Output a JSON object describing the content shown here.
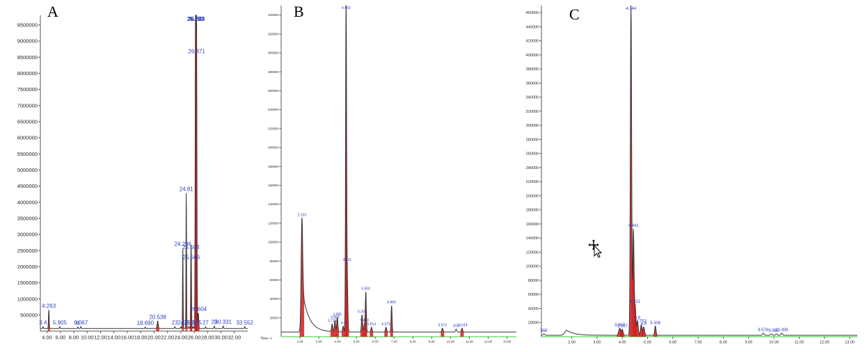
{
  "colors": {
    "trace": "#333333",
    "fill": "#cc1f1f",
    "label": "#2b3fbf",
    "axis": "#555555",
    "baseline": "#2cd12c"
  },
  "chart_data": [
    {
      "type": "line",
      "panel_label": "A",
      "xlim": [
        3.0,
        34.0
      ],
      "ylim": [
        0,
        9800000
      ],
      "x_ticks": [
        "4.00",
        "6.00",
        "8.00",
        "10.00",
        "12.00",
        "14.00",
        "16.00",
        "18.00",
        "20.00",
        "22.00",
        "24.00",
        "26.00",
        "28.00",
        "30.00",
        "32.00"
      ],
      "x_tick_values": [
        4,
        6,
        8,
        10,
        12,
        14,
        16,
        18,
        20,
        22,
        24,
        26,
        28,
        30,
        32
      ],
      "y_ticks": [
        "500000",
        "1000000",
        "1500000",
        "2000000",
        "2500000",
        "3000000",
        "3500000",
        "4000000",
        "4500000",
        "5000000",
        "5500000",
        "6000000",
        "6500000",
        "7000000",
        "7500000",
        "8000000",
        "8500000",
        "9000000",
        "9500000"
      ],
      "y_tick_values": [
        500000,
        1000000,
        1500000,
        2000000,
        2500000,
        3000000,
        3500000,
        4000000,
        4500000,
        5000000,
        5500000,
        6000000,
        6500000,
        7000000,
        7500000,
        8000000,
        8500000,
        9000000,
        9500000
      ],
      "baseline": 80000,
      "peaks": [
        {
          "rt": 3.4,
          "h": 60000,
          "w": 0.05,
          "label": "3.4"
        },
        {
          "rt": 4.263,
          "h": 580000,
          "w": 0.05,
          "label": "4.263"
        },
        {
          "rt": 5.905,
          "h": 60000,
          "w": 0.05,
          "label": "5.905"
        },
        {
          "rt": 8.6,
          "h": 50000,
          "w": 0.05,
          "label": "8"
        },
        {
          "rt": 9.067,
          "h": 60000,
          "w": 0.05,
          "label": "9.067"
        },
        {
          "rt": 18.69,
          "h": 50000,
          "w": 0.05,
          "label": "18.690"
        },
        {
          "rt": 20.538,
          "h": 230000,
          "w": 0.08,
          "label": "20.538"
        },
        {
          "rt": 23.1,
          "h": 60000,
          "w": 0.05,
          "label": "23"
        },
        {
          "rt": 24.0,
          "h": 60000,
          "w": 0.05,
          "label": "24"
        },
        {
          "rt": 24.296,
          "h": 2500000,
          "w": 0.04,
          "label": "24.296"
        },
        {
          "rt": 24.81,
          "h": 4200000,
          "w": 0.04,
          "label": "24.81"
        },
        {
          "rt": 25.2,
          "h": 60000,
          "w": 0.05,
          "label": "25.2"
        },
        {
          "rt": 25.504,
          "h": 1950000,
          "w": 0.04,
          "label": "25.504"
        },
        {
          "rt": 25.566,
          "h": 1500000,
          "w": 0.04,
          "label": "25.566"
        },
        {
          "rt": 25.845,
          "h": 60000,
          "w": 0.05,
          "label": "25.845"
        },
        {
          "rt": 26.192,
          "h": 9450000,
          "w": 0.05,
          "label": "26.192"
        },
        {
          "rt": 26.281,
          "h": 7500000,
          "w": 0.05,
          "label": "26.281"
        },
        {
          "rt": 26.339,
          "h": 4150000,
          "w": 0.05,
          "label": "26.339"
        },
        {
          "rt": 26.371,
          "h": 3600000,
          "w": 0.05,
          "label": "26.371"
        },
        {
          "rt": 26.604,
          "h": 480000,
          "w": 0.06,
          "label": "26.604"
        },
        {
          "rt": 27.7,
          "h": 60000,
          "w": 0.05,
          "label": "27"
        },
        {
          "rt": 29.0,
          "h": 80000,
          "w": 0.05,
          "label": "29"
        },
        {
          "rt": 30.331,
          "h": 80000,
          "w": 0.05,
          "label": "30.331"
        },
        {
          "rt": 33.552,
          "h": 60000,
          "w": 0.05,
          "label": "33.552"
        }
      ]
    },
    {
      "type": "line",
      "panel_label": "B",
      "xlim": [
        1.0,
        13.5
      ],
      "ylim": [
        0,
        350000
      ],
      "x_ticks": [
        "2.00",
        "3.00",
        "4.00",
        "5.00",
        "6.00",
        "7.00",
        "8.00",
        "9.00",
        "10.00",
        "11.00",
        "12.00",
        "13.00"
      ],
      "x_tick_values": [
        2,
        3,
        4,
        5,
        6,
        7,
        8,
        9,
        10,
        11,
        12,
        13
      ],
      "y_ticks": [
        "20000",
        "40000",
        "60000",
        "80000",
        "100000",
        "120000",
        "140000",
        "160000",
        "180000",
        "200000",
        "220000",
        "240000",
        "260000",
        "280000",
        "300000",
        "320000",
        "340000"
      ],
      "y_tick_values": [
        20000,
        40000,
        60000,
        80000,
        100000,
        120000,
        140000,
        160000,
        180000,
        200000,
        220000,
        240000,
        260000,
        280000,
        300000,
        320000,
        340000
      ],
      "x_axis_text": "Time-->",
      "baseline": 5000,
      "hump": {
        "center": 2.2,
        "height": 35000,
        "width": 0.35
      },
      "peaks": [
        {
          "rt": 2.103,
          "h": 105000,
          "w": 0.04,
          "label": "2.103"
        },
        {
          "rt": 3.71,
          "h": 8000,
          "w": 0.03,
          "label": "3.710"
        },
        {
          "rt": 3.86,
          "h": 12000,
          "w": 0.03,
          "label": "3.860"
        },
        {
          "rt": 3.985,
          "h": 15000,
          "w": 0.03,
          "label": "3.985"
        },
        {
          "rt": 4.3,
          "h": 6000,
          "w": 0.03,
          "label": "4.3"
        },
        {
          "rt": 4.45,
          "h": 350000,
          "w": 0.025,
          "label": "4.450"
        },
        {
          "rt": 4.511,
          "h": 55000,
          "w": 0.03,
          "label": "4.511"
        },
        {
          "rt": 5.3,
          "h": 18000,
          "w": 0.03,
          "label": "5.301"
        },
        {
          "rt": 5.5,
          "h": 42000,
          "w": 0.025,
          "label": "5.500"
        },
        {
          "rt": 5.43,
          "h": 8000,
          "w": 0.03,
          "label": "5.430"
        },
        {
          "rt": 5.8,
          "h": 5000,
          "w": 0.03,
          "label": "5.814"
        },
        {
          "rt": 6.575,
          "h": 5000,
          "w": 0.03,
          "label": "6.575"
        },
        {
          "rt": 6.869,
          "h": 28000,
          "w": 0.025,
          "label": "6.869"
        },
        {
          "rt": 9.572,
          "h": 4000,
          "w": 0.03,
          "label": "9.572"
        },
        {
          "rt": 10.3,
          "h": 3000,
          "w": 0.03,
          "label": "10.3"
        },
        {
          "rt": 10.614,
          "h": 4000,
          "w": 0.03,
          "label": "10.614"
        }
      ]
    },
    {
      "type": "line",
      "panel_label": "C",
      "xlim": [
        0.8,
        13.3
      ],
      "ylim": [
        0,
        470000
      ],
      "x_ticks": [
        "2.00",
        "3.00",
        "4.00",
        "5.00",
        "6.00",
        "7.00",
        "8.00",
        "9.00",
        "10.00",
        "11.00",
        "12.00",
        "13.00"
      ],
      "x_tick_values": [
        2,
        3,
        4,
        5,
        6,
        7,
        8,
        9,
        10,
        11,
        12,
        13
      ],
      "y_ticks": [
        "20000",
        "40000",
        "60000",
        "80000",
        "100000",
        "120000",
        "140000",
        "160000",
        "180000",
        "200000",
        "220000",
        "240000",
        "260000",
        "280000",
        "300000",
        "320000",
        "340000",
        "360000",
        "380000",
        "400000",
        "420000",
        "440000",
        "460000"
      ],
      "y_tick_values": [
        20000,
        40000,
        60000,
        80000,
        100000,
        120000,
        140000,
        160000,
        180000,
        200000,
        220000,
        240000,
        260000,
        280000,
        300000,
        320000,
        340000,
        360000,
        380000,
        400000,
        420000,
        440000,
        460000
      ],
      "baseline": 2000,
      "hump": {
        "center": 1.8,
        "height": 7000,
        "width": 0.3
      },
      "peaks": [
        {
          "rt": 0.9,
          "h": 2000,
          "w": 0.03,
          "label": "566"
        },
        {
          "rt": 3.9,
          "h": 10000,
          "w": 0.04,
          "label": "3.907"
        },
        {
          "rt": 4.0,
          "h": 8000,
          "w": 0.03,
          "label": "3.997"
        },
        {
          "rt": 4.344,
          "h": 470000,
          "w": 0.025,
          "label": "4.344"
        },
        {
          "rt": 4.441,
          "h": 150000,
          "w": 0.025,
          "label": "4.441"
        },
        {
          "rt": 4.511,
          "h": 40000,
          "w": 0.025,
          "label": "4.511"
        },
        {
          "rt": 4.6,
          "h": 20000,
          "w": 0.03,
          "label": "4.6"
        },
        {
          "rt": 4.75,
          "h": 15000,
          "w": 0.03,
          "label": "4.753"
        },
        {
          "rt": 4.85,
          "h": 12000,
          "w": 0.03,
          "label": "4.8"
        },
        {
          "rt": 5.308,
          "h": 13000,
          "w": 0.025,
          "label": "5.308"
        },
        {
          "rt": 9.578,
          "h": 3000,
          "w": 0.03,
          "label": "9.578"
        },
        {
          "rt": 9.9,
          "h": 2000,
          "w": 0.03,
          "label": "9.9"
        },
        {
          "rt": 10.1,
          "h": 2000,
          "w": 0.03,
          "label": "92"
        },
        {
          "rt": 10.308,
          "h": 3000,
          "w": 0.03,
          "label": "10.308"
        }
      ]
    }
  ],
  "cursor_icon": "move-cursor-icon"
}
